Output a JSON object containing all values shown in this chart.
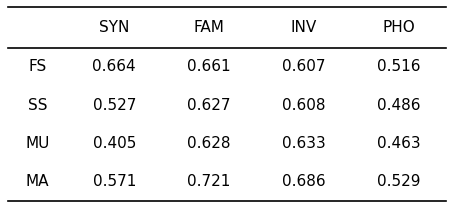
{
  "columns": [
    "SYN",
    "FAM",
    "INV",
    "PHO"
  ],
  "rows": [
    "FS",
    "SS",
    "MU",
    "MA"
  ],
  "values": [
    [
      0.664,
      0.661,
      0.607,
      0.516
    ],
    [
      0.527,
      0.627,
      0.608,
      0.486
    ],
    [
      0.405,
      0.628,
      0.633,
      0.463
    ],
    [
      0.571,
      0.721,
      0.686,
      0.529
    ]
  ],
  "background_color": "#ffffff",
  "text_color": "#000000",
  "header_fontsize": 11,
  "cell_fontsize": 11
}
